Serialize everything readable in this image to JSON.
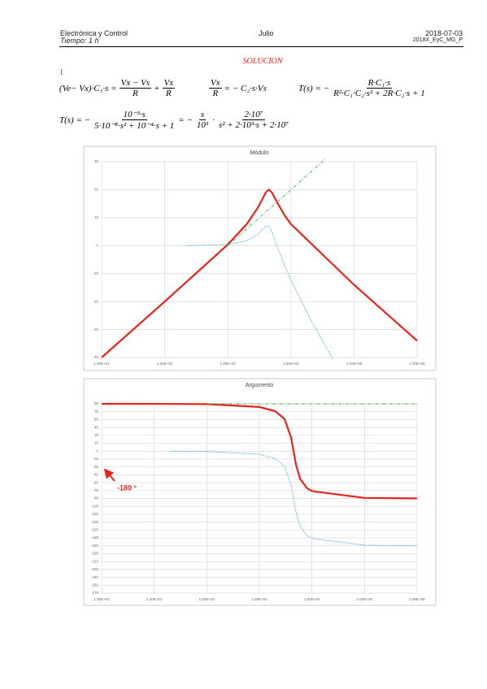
{
  "header": {
    "course": "Electrónica y Control",
    "time": "Tiempo: 1 h",
    "month": "Julio",
    "date": "2018-07-03",
    "code": "2018X_EyC_MG_P"
  },
  "section": {
    "title": "SOLUCION",
    "number": "1"
  },
  "equations": [
    [
      "(Ve− Vx)·C₁·s =",
      {
        "num": "Vx − Vs",
        "den": "R"
      },
      "+",
      {
        "num": "Vx",
        "den": "R"
      }
    ],
    [
      {
        "num": "Vx",
        "den": "R"
      },
      "= − C₂·s·Vs"
    ],
    [
      "T(s) = −",
      {
        "num": "R·C₁·s",
        "den": "R²·C₁·C₂·s² + 2R·C₂·s + 1"
      }
    ],
    [
      "T(s) = −",
      {
        "num": "10⁻³·s",
        "den": "5·10⁻⁸·s² + 10⁻⁴·s + 1"
      },
      "= −",
      {
        "num": "s",
        "den": "10³"
      },
      "·",
      {
        "num": "2·10⁷",
        "den": "s² + 2·10³·s + 2·10⁷"
      }
    ]
  ],
  "chart_data": [
    {
      "type": "line",
      "title": "Módulo",
      "log_x": true,
      "grid": true,
      "xlim": [
        10,
        1000000
      ],
      "xticks": [
        {
          "value": 10,
          "label": "1.00E+01"
        },
        {
          "value": 100,
          "label": "1.00E+02"
        },
        {
          "value": 1000,
          "label": "1.00E+03"
        },
        {
          "value": 10000,
          "label": "1.00E+04"
        },
        {
          "value": 100000,
          "label": "1.00E+05"
        },
        {
          "value": 1000000,
          "label": "1.00E+06"
        }
      ],
      "ylim": [
        -40,
        30
      ],
      "yticks": [
        -40,
        -30,
        -20,
        -10,
        0,
        10,
        20,
        30
      ],
      "series": [
        {
          "color": "#e8231c",
          "style": "solid",
          "x": [
            10,
            100,
            1000,
            2000,
            3000,
            4000,
            4472,
            5000,
            6000,
            8000,
            10000,
            100000,
            1000000
          ],
          "values": [
            -40,
            -20,
            0.4,
            7.7,
            13.6,
            19,
            20,
            19,
            15.6,
            10.7,
            7.7,
            -14,
            -34
          ]
        },
        {
          "color": "#3aa84a",
          "style": "dashdot",
          "x": [
            1000,
            35000
          ],
          "values": [
            0,
            30.9
          ]
        },
        {
          "color": "#2aa6e0",
          "style": "dotted",
          "x": [
            220,
            1000,
            2000,
            3000,
            4000,
            4472,
            5000,
            6000,
            8000,
            10000,
            20000,
            46000
          ],
          "values": [
            0,
            0.4,
            1.7,
            4.1,
            7,
            7,
            5.05,
            0,
            -7.4,
            -12.3,
            -26,
            -40.4
          ]
        }
      ]
    },
    {
      "type": "line",
      "title": "Argumento",
      "log_x": true,
      "grid": true,
      "xlim": [
        1,
        1000000
      ],
      "xticks": [
        {
          "value": 1,
          "label": "1.00E+00"
        },
        {
          "value": 10,
          "label": "1.00E+01"
        },
        {
          "value": 100,
          "label": "1.00E+02"
        },
        {
          "value": 1000,
          "label": "1.00E+03"
        },
        {
          "value": 10000,
          "label": "1.00E+04"
        },
        {
          "value": 100000,
          "label": "1.00E+05"
        },
        {
          "value": 1000000,
          "label": "1.00E+06"
        }
      ],
      "ylim": [
        -270,
        90
      ],
      "yticks": [
        90,
        75,
        60,
        45,
        30,
        15,
        0,
        -15,
        -30,
        -45,
        -60,
        -75,
        -90,
        -105,
        -120,
        -135,
        -150,
        -165,
        -180,
        -195,
        -210,
        -225,
        -240,
        -255,
        -270
      ],
      "annotation": "-180 °",
      "series": [
        {
          "color": "#e8231c",
          "style": "solid",
          "x": [
            1,
            10,
            100,
            1000,
            2000,
            3000,
            4000,
            4472,
            5000,
            6000,
            8000,
            10000,
            100000,
            1000000
          ],
          "values": [
            90,
            89.9,
            89.4,
            84,
            76,
            61.4,
            26.6,
            0,
            -26.6,
            -53.1,
            -70,
            -76,
            -88.9,
            -89.9
          ]
        },
        {
          "color": "#3aa84a",
          "style": "dashdot",
          "x": [
            100,
            1000000
          ],
          "values": [
            90,
            90
          ]
        },
        {
          "color": "#2aa6e0",
          "style": "dotted",
          "x": [
            20,
            100,
            1000,
            2000,
            3000,
            4000,
            4472,
            5000,
            6000,
            8000,
            10000,
            100000,
            1000000
          ],
          "values": [
            -0.1,
            -0.6,
            -6,
            -14,
            -28.6,
            -63.4,
            -90,
            -116.6,
            -143.1,
            -160,
            -166,
            -178.9,
            -179.9
          ]
        }
      ]
    }
  ]
}
